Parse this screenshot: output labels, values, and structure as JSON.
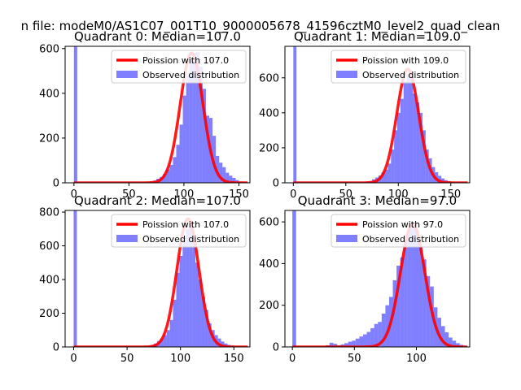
{
  "figure": {
    "suptitle": "n file: modeM0/AS1C07_001T10_9000005678_41596cztM0_level2_quad_clean"
  },
  "chart_data": [
    {
      "type": "bar+line",
      "title": "Quadrant 0: Median=107.0",
      "xlim": [
        -8,
        160
      ],
      "ylim": [
        0,
        610
      ],
      "xticks": [
        0,
        50,
        100,
        150
      ],
      "yticks": [
        0,
        200,
        400,
        600
      ],
      "legend": {
        "position": "top-right",
        "entries": [
          "Poission with 107.0",
          "Observed distribution"
        ]
      },
      "series": [
        {
          "name": "Poission with 107.0",
          "kind": "line",
          "mean": 107.0,
          "peak": 580
        },
        {
          "name": "Observed distribution",
          "kind": "histogram",
          "bin_width": 3,
          "bins": [
            [
              0,
              610
            ],
            [
              69,
              6
            ],
            [
              72,
              10
            ],
            [
              75,
              18
            ],
            [
              78,
              26
            ],
            [
              81,
              40
            ],
            [
              84,
              60
            ],
            [
              87,
              80
            ],
            [
              90,
              115
            ],
            [
              93,
              170
            ],
            [
              96,
              260
            ],
            [
              99,
              390
            ],
            [
              102,
              480
            ],
            [
              105,
              550
            ],
            [
              108,
              580
            ],
            [
              111,
              585
            ],
            [
              114,
              520
            ],
            [
              117,
              420
            ],
            [
              120,
              300
            ],
            [
              123,
              290
            ],
            [
              126,
              210
            ],
            [
              129,
              120
            ],
            [
              132,
              90
            ],
            [
              135,
              70
            ],
            [
              138,
              45
            ],
            [
              141,
              32
            ],
            [
              144,
              22
            ],
            [
              147,
              12
            ],
            [
              150,
              6
            ]
          ]
        }
      ]
    },
    {
      "type": "bar+line",
      "title": "Quadrant 1: Median=109.0",
      "xlim": [
        -8,
        168
      ],
      "ylim": [
        0,
        780
      ],
      "xticks": [
        0,
        50,
        100,
        150
      ],
      "yticks": [
        0,
        200,
        400,
        600
      ],
      "legend": {
        "position": "top-right",
        "entries": [
          "Poission with 109.0",
          "Observed distribution"
        ]
      },
      "series": [
        {
          "name": "Poission with 109.0",
          "kind": "line",
          "mean": 109.0,
          "peak": 650
        },
        {
          "name": "Observed distribution",
          "kind": "histogram",
          "bin_width": 3,
          "bins": [
            [
              0,
              780
            ],
            [
              69,
              6
            ],
            [
              72,
              10
            ],
            [
              75,
              20
            ],
            [
              78,
              30
            ],
            [
              81,
              42
            ],
            [
              84,
              60
            ],
            [
              87,
              75
            ],
            [
              90,
              110
            ],
            [
              93,
              190
            ],
            [
              96,
              300
            ],
            [
              99,
              400
            ],
            [
              102,
              480
            ],
            [
              105,
              580
            ],
            [
              108,
              620
            ],
            [
              111,
              640
            ],
            [
              114,
              510
            ],
            [
              117,
              460
            ],
            [
              120,
              400
            ],
            [
              123,
              300
            ],
            [
              126,
              190
            ],
            [
              129,
              140
            ],
            [
              132,
              90
            ],
            [
              135,
              60
            ],
            [
              138,
              40
            ],
            [
              141,
              25
            ],
            [
              144,
              15
            ],
            [
              147,
              10
            ],
            [
              150,
              6
            ]
          ]
        }
      ]
    },
    {
      "type": "bar+line",
      "title": "Quadrant 2: Median=107.0",
      "xlim": [
        -8,
        165
      ],
      "ylim": [
        0,
        810
      ],
      "xticks": [
        0,
        50,
        100,
        150
      ],
      "yticks": [
        0,
        200,
        400,
        600,
        800
      ],
      "legend": {
        "position": "top-right",
        "entries": [
          "Poission with 107.0",
          "Observed distribution"
        ]
      },
      "series": [
        {
          "name": "Poission with 107.0",
          "kind": "line",
          "mean": 107.0,
          "peak": 760
        },
        {
          "name": "Observed distribution",
          "kind": "histogram",
          "bin_width": 3,
          "bins": [
            [
              0,
              810
            ],
            [
              69,
              6
            ],
            [
              72,
              12
            ],
            [
              75,
              20
            ],
            [
              78,
              35
            ],
            [
              81,
              50
            ],
            [
              84,
              70
            ],
            [
              87,
              100
            ],
            [
              90,
              160
            ],
            [
              93,
              280
            ],
            [
              96,
              440
            ],
            [
              99,
              540
            ],
            [
              102,
              650
            ],
            [
              105,
              700
            ],
            [
              108,
              740
            ],
            [
              111,
              650
            ],
            [
              114,
              500
            ],
            [
              117,
              400
            ],
            [
              120,
              300
            ],
            [
              123,
              220
            ],
            [
              126,
              140
            ],
            [
              129,
              100
            ],
            [
              132,
              70
            ],
            [
              135,
              50
            ],
            [
              138,
              32
            ],
            [
              141,
              20
            ],
            [
              144,
              12
            ],
            [
              147,
              8
            ]
          ]
        }
      ]
    },
    {
      "type": "bar+line",
      "title": "Quadrant 3: Median=97.0",
      "xlim": [
        -6,
        143
      ],
      "ylim": [
        0,
        655
      ],
      "xticks": [
        0,
        50,
        100
      ],
      "yticks": [
        0,
        200,
        400,
        600
      ],
      "legend": {
        "position": "top-right",
        "entries": [
          "Poission with 97.0",
          "Observed distribution"
        ]
      },
      "series": [
        {
          "name": "Poission with 97.0",
          "kind": "line",
          "mean": 97.0,
          "peak": 590
        },
        {
          "name": "Observed distribution",
          "kind": "histogram",
          "bin_width": 3,
          "bins": [
            [
              0,
              655
            ],
            [
              27,
              8
            ],
            [
              30,
              20
            ],
            [
              33,
              15
            ],
            [
              36,
              8
            ],
            [
              39,
              12
            ],
            [
              42,
              18
            ],
            [
              45,
              25
            ],
            [
              48,
              30
            ],
            [
              51,
              40
            ],
            [
              54,
              50
            ],
            [
              57,
              60
            ],
            [
              60,
              72
            ],
            [
              63,
              90
            ],
            [
              66,
              110
            ],
            [
              69,
              120
            ],
            [
              72,
              160
            ],
            [
              75,
              200
            ],
            [
              78,
              240
            ],
            [
              81,
              320
            ],
            [
              84,
              390
            ],
            [
              87,
              430
            ],
            [
              90,
              520
            ],
            [
              93,
              570
            ],
            [
              96,
              600
            ],
            [
              99,
              560
            ],
            [
              102,
              490
            ],
            [
              105,
              420
            ],
            [
              108,
              340
            ],
            [
              111,
              290
            ],
            [
              114,
              190
            ],
            [
              117,
              140
            ],
            [
              120,
              100
            ],
            [
              123,
              70
            ],
            [
              126,
              45
            ],
            [
              129,
              30
            ],
            [
              132,
              18
            ],
            [
              135,
              10
            ]
          ]
        }
      ]
    }
  ]
}
